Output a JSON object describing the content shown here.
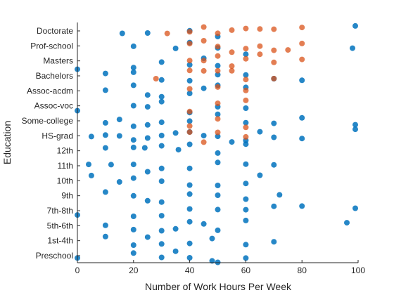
{
  "chart_data": {
    "type": "scatter",
    "title": "",
    "xlabel": "Number of Work Hours Per Week",
    "ylabel": "Education",
    "xlim": [
      0,
      100
    ],
    "x_ticks": [
      0,
      20,
      40,
      60,
      80,
      100
    ],
    "categories": [
      "Preschool",
      "1st-4th",
      "5th-6th",
      "7th-8th",
      "9th",
      "10th",
      "11th",
      "12th",
      "HS-grad",
      "Some-college",
      "Assoc-voc",
      "Assoc-acdm",
      "Bachelors",
      "Masters",
      "Prof-school",
      "Doctorate"
    ],
    "grid": false,
    "legend": "none",
    "series": [
      {
        "color": "#0072BD",
        "points": [
          {
            "x": 40,
            "y": "Preschool"
          },
          {
            "x": 20,
            "y": "Preschool"
          },
          {
            "x": 30,
            "y": "Preschool"
          },
          {
            "x": 50,
            "y": "Preschool"
          },
          {
            "x": 60,
            "y": "Preschool"
          },
          {
            "x": 0,
            "y": "Preschool"
          },
          {
            "x": 35,
            "y": "Preschool"
          },
          {
            "x": 48,
            "y": "Preschool"
          },
          {
            "x": 40,
            "y": "1st-4th"
          },
          {
            "x": 20,
            "y": "1st-4th"
          },
          {
            "x": 30,
            "y": "1st-4th"
          },
          {
            "x": 48,
            "y": "1st-4th"
          },
          {
            "x": 60,
            "y": "1st-4th"
          },
          {
            "x": 10,
            "y": "1st-4th"
          },
          {
            "x": 70,
            "y": "1st-4th"
          },
          {
            "x": 25,
            "y": "1st-4th"
          },
          {
            "x": 40,
            "y": "5th-6th"
          },
          {
            "x": 20,
            "y": "5th-6th"
          },
          {
            "x": 30,
            "y": "5th-6th"
          },
          {
            "x": 50,
            "y": "5th-6th"
          },
          {
            "x": 60,
            "y": "5th-6th"
          },
          {
            "x": 10,
            "y": "5th-6th"
          },
          {
            "x": 35,
            "y": "5th-6th"
          },
          {
            "x": 45,
            "y": "5th-6th"
          },
          {
            "x": 96,
            "y": "5th-6th"
          },
          {
            "x": 40,
            "y": "7th-8th"
          },
          {
            "x": 20,
            "y": "7th-8th"
          },
          {
            "x": 30,
            "y": "7th-8th"
          },
          {
            "x": 50,
            "y": "7th-8th"
          },
          {
            "x": 60,
            "y": "7th-8th"
          },
          {
            "x": 0,
            "y": "7th-8th"
          },
          {
            "x": 70,
            "y": "7th-8th"
          },
          {
            "x": 80,
            "y": "7th-8th"
          },
          {
            "x": 99,
            "y": "7th-8th"
          },
          {
            "x": 40,
            "y": "9th"
          },
          {
            "x": 20,
            "y": "9th"
          },
          {
            "x": 30,
            "y": "9th"
          },
          {
            "x": 50,
            "y": "9th"
          },
          {
            "x": 60,
            "y": "9th"
          },
          {
            "x": 10,
            "y": "9th"
          },
          {
            "x": 72,
            "y": "9th"
          },
          {
            "x": 25,
            "y": "9th"
          },
          {
            "x": 40,
            "y": "10th"
          },
          {
            "x": 20,
            "y": "10th"
          },
          {
            "x": 30,
            "y": "10th"
          },
          {
            "x": 50,
            "y": "10th"
          },
          {
            "x": 60,
            "y": "10th"
          },
          {
            "x": 5,
            "y": "10th"
          },
          {
            "x": 15,
            "y": "10th"
          },
          {
            "x": 65,
            "y": "10th"
          },
          {
            "x": 40,
            "y": "11th"
          },
          {
            "x": 20,
            "y": "11th"
          },
          {
            "x": 30,
            "y": "11th"
          },
          {
            "x": 50,
            "y": "11th"
          },
          {
            "x": 60,
            "y": "11th"
          },
          {
            "x": 4,
            "y": "11th"
          },
          {
            "x": 12,
            "y": "11th"
          },
          {
            "x": 25,
            "y": "11th"
          },
          {
            "x": 70,
            "y": "11th"
          },
          {
            "x": 40,
            "y": "12th"
          },
          {
            "x": 20,
            "y": "12th"
          },
          {
            "x": 30,
            "y": "12th"
          },
          {
            "x": 50,
            "y": "12th"
          },
          {
            "x": 60,
            "y": "12th"
          },
          {
            "x": 10,
            "y": "12th"
          },
          {
            "x": 24,
            "y": "12th"
          },
          {
            "x": 36,
            "y": "12th"
          },
          {
            "x": 40,
            "y": "HS-grad"
          },
          {
            "x": 20,
            "y": "HS-grad"
          },
          {
            "x": 30,
            "y": "HS-grad"
          },
          {
            "x": 50,
            "y": "HS-grad"
          },
          {
            "x": 60,
            "y": "HS-grad"
          },
          {
            "x": 70,
            "y": "HS-grad"
          },
          {
            "x": 80,
            "y": "HS-grad"
          },
          {
            "x": 99,
            "y": "HS-grad"
          },
          {
            "x": 5,
            "y": "HS-grad"
          },
          {
            "x": 10,
            "y": "HS-grad"
          },
          {
            "x": 15,
            "y": "HS-grad"
          },
          {
            "x": 25,
            "y": "HS-grad"
          },
          {
            "x": 35,
            "y": "HS-grad"
          },
          {
            "x": 45,
            "y": "HS-grad"
          },
          {
            "x": 55,
            "y": "HS-grad"
          },
          {
            "x": 65,
            "y": "HS-grad"
          },
          {
            "x": 40,
            "y": "Some-college"
          },
          {
            "x": 20,
            "y": "Some-college"
          },
          {
            "x": 30,
            "y": "Some-college"
          },
          {
            "x": 50,
            "y": "Some-college"
          },
          {
            "x": 60,
            "y": "Some-college"
          },
          {
            "x": 10,
            "y": "Some-college"
          },
          {
            "x": 15,
            "y": "Some-college"
          },
          {
            "x": 25,
            "y": "Some-college"
          },
          {
            "x": 70,
            "y": "Some-college"
          },
          {
            "x": 80,
            "y": "Some-college"
          },
          {
            "x": 99,
            "y": "Some-college"
          },
          {
            "x": 40,
            "y": "Assoc-voc"
          },
          {
            "x": 20,
            "y": "Assoc-voc"
          },
          {
            "x": 30,
            "y": "Assoc-voc"
          },
          {
            "x": 50,
            "y": "Assoc-voc"
          },
          {
            "x": 60,
            "y": "Assoc-voc"
          },
          {
            "x": 0,
            "y": "Assoc-voc"
          },
          {
            "x": 25,
            "y": "Assoc-voc"
          },
          {
            "x": 40,
            "y": "Assoc-acdm"
          },
          {
            "x": 20,
            "y": "Assoc-acdm"
          },
          {
            "x": 30,
            "y": "Assoc-acdm"
          },
          {
            "x": 50,
            "y": "Assoc-acdm"
          },
          {
            "x": 60,
            "y": "Assoc-acdm"
          },
          {
            "x": 10,
            "y": "Assoc-acdm"
          },
          {
            "x": 25,
            "y": "Assoc-acdm"
          },
          {
            "x": 45,
            "y": "Assoc-acdm"
          },
          {
            "x": 40,
            "y": "Bachelors"
          },
          {
            "x": 20,
            "y": "Bachelors"
          },
          {
            "x": 30,
            "y": "Bachelors"
          },
          {
            "x": 50,
            "y": "Bachelors"
          },
          {
            "x": 60,
            "y": "Bachelors"
          },
          {
            "x": 0,
            "y": "Bachelors"
          },
          {
            "x": 10,
            "y": "Bachelors"
          },
          {
            "x": 70,
            "y": "Bachelors"
          },
          {
            "x": 80,
            "y": "Bachelors"
          },
          {
            "x": 40,
            "y": "Masters"
          },
          {
            "x": 20,
            "y": "Masters"
          },
          {
            "x": 30,
            "y": "Masters"
          },
          {
            "x": 50,
            "y": "Masters"
          },
          {
            "x": 45,
            "y": "Masters"
          },
          {
            "x": 60,
            "y": "Masters"
          },
          {
            "x": 40,
            "y": "Prof-school"
          },
          {
            "x": 20,
            "y": "Prof-school"
          },
          {
            "x": 50,
            "y": "Prof-school"
          },
          {
            "x": 35,
            "y": "Prof-school"
          },
          {
            "x": 98,
            "y": "Prof-school"
          },
          {
            "x": 40,
            "y": "Doctorate"
          },
          {
            "x": 25,
            "y": "Doctorate"
          },
          {
            "x": 50,
            "y": "Doctorate"
          },
          {
            "x": 16,
            "y": "Doctorate"
          },
          {
            "x": 99,
            "y": "Doctorate"
          }
        ]
      },
      {
        "color": "#D95319",
        "points": [
          {
            "x": 40,
            "y": "Doctorate"
          },
          {
            "x": 45,
            "y": "Doctorate"
          },
          {
            "x": 50,
            "y": "Doctorate"
          },
          {
            "x": 55,
            "y": "Doctorate"
          },
          {
            "x": 60,
            "y": "Doctorate"
          },
          {
            "x": 32,
            "y": "Doctorate"
          },
          {
            "x": 65,
            "y": "Doctorate"
          },
          {
            "x": 70,
            "y": "Doctorate"
          },
          {
            "x": 80,
            "y": "Doctorate"
          },
          {
            "x": 40,
            "y": "Prof-school"
          },
          {
            "x": 45,
            "y": "Prof-school"
          },
          {
            "x": 50,
            "y": "Prof-school"
          },
          {
            "x": 55,
            "y": "Prof-school"
          },
          {
            "x": 60,
            "y": "Prof-school"
          },
          {
            "x": 65,
            "y": "Prof-school"
          },
          {
            "x": 70,
            "y": "Prof-school"
          },
          {
            "x": 75,
            "y": "Prof-school"
          },
          {
            "x": 80,
            "y": "Prof-school"
          },
          {
            "x": 40,
            "y": "Masters"
          },
          {
            "x": 45,
            "y": "Masters"
          },
          {
            "x": 50,
            "y": "Masters"
          },
          {
            "x": 55,
            "y": "Masters"
          },
          {
            "x": 60,
            "y": "Masters"
          },
          {
            "x": 65,
            "y": "Masters"
          },
          {
            "x": 70,
            "y": "Masters"
          },
          {
            "x": 80,
            "y": "Masters"
          },
          {
            "x": 40,
            "y": "Bachelors"
          },
          {
            "x": 45,
            "y": "Bachelors"
          },
          {
            "x": 50,
            "y": "Bachelors"
          },
          {
            "x": 55,
            "y": "Bachelors"
          },
          {
            "x": 60,
            "y": "Bachelors"
          },
          {
            "x": 28,
            "y": "Bachelors"
          },
          {
            "x": 70,
            "y": "Bachelors"
          },
          {
            "x": 40,
            "y": "Assoc-acdm"
          },
          {
            "x": 50,
            "y": "Assoc-acdm"
          },
          {
            "x": 60,
            "y": "Assoc-acdm"
          },
          {
            "x": 40,
            "y": "Assoc-voc"
          },
          {
            "x": 50,
            "y": "Assoc-voc"
          },
          {
            "x": 60,
            "y": "Assoc-voc"
          },
          {
            "x": 40,
            "y": "Some-college"
          },
          {
            "x": 50,
            "y": "Some-college"
          },
          {
            "x": 60,
            "y": "Some-college"
          },
          {
            "x": 40,
            "y": "HS-grad"
          },
          {
            "x": 50,
            "y": "HS-grad"
          },
          {
            "x": 60,
            "y": "HS-grad"
          },
          {
            "x": 45,
            "y": "HS-grad"
          }
        ]
      }
    ]
  }
}
